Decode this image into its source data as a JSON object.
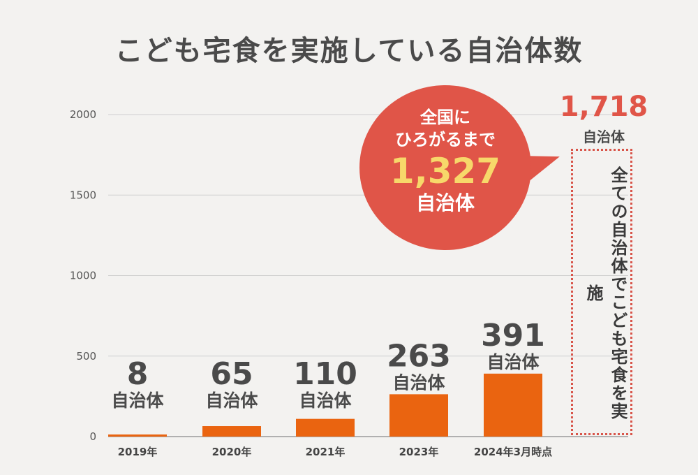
{
  "title": "こども宅食を実施している自治体数",
  "colors": {
    "bar": "#ea6410",
    "accent_red": "#e05548",
    "highlight_yellow": "#f7d86a",
    "grid": "#cfcfcf"
  },
  "chart_data": {
    "type": "bar",
    "categories": [
      "2019年",
      "2020年",
      "2021年",
      "2023年",
      "2024年3月時点"
    ],
    "values": [
      8,
      65,
      110,
      263,
      391
    ],
    "value_labels": [
      "8",
      "65",
      "110",
      "263",
      "391"
    ],
    "unit_label": "自治体",
    "ylim": [
      0,
      2000
    ],
    "yticks": [
      0,
      500,
      1000,
      1500,
      2000
    ],
    "grid": true
  },
  "bubble": {
    "line1": "全国に",
    "line2": "ひろがるまで",
    "number": "1,327",
    "unit": "自治体"
  },
  "target": {
    "number": "1,718",
    "unit": "自治体",
    "note": "全ての自治体でこども宅食を実施"
  }
}
